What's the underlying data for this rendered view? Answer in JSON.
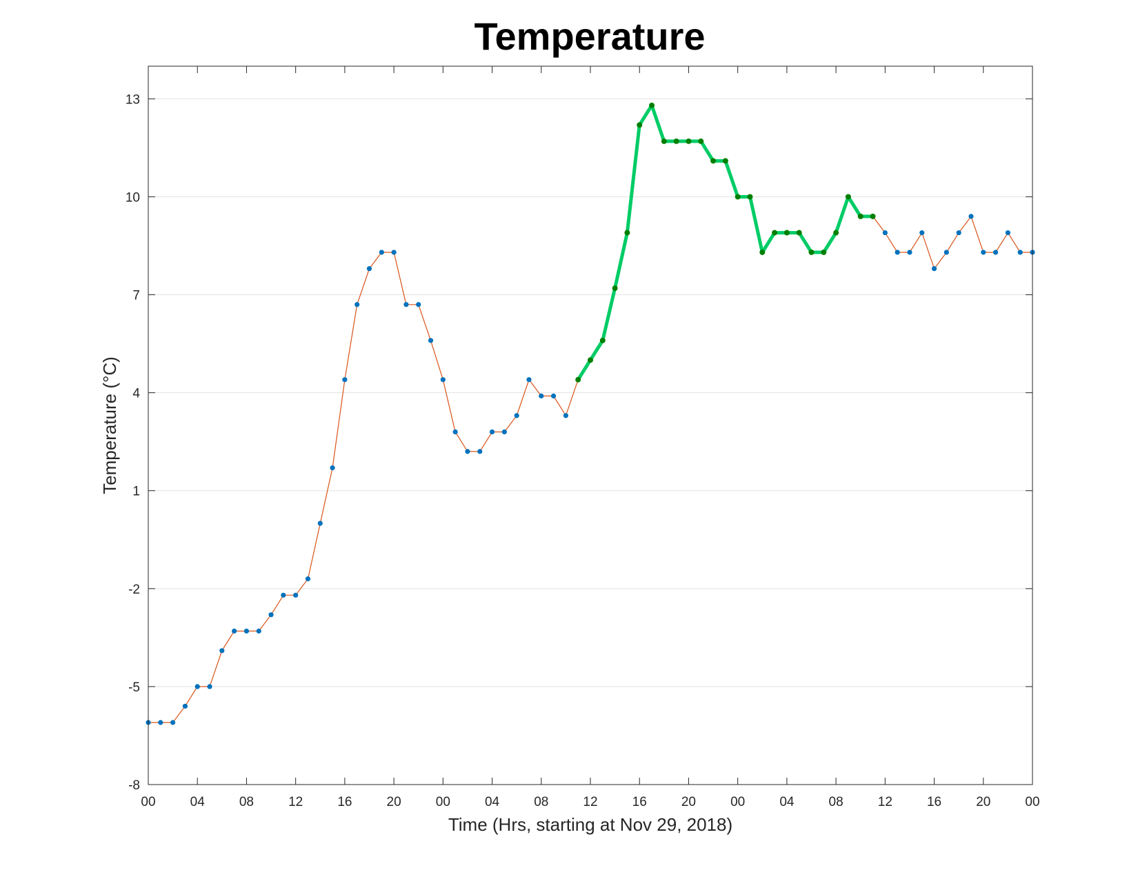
{
  "chart_data": {
    "type": "line",
    "title": "Temperature",
    "xlabel": "Time (Hrs, starting at Nov 29, 2018)",
    "ylabel": "Temperature (°C)",
    "xlim": [
      0,
      72
    ],
    "ylim": [
      -8,
      14
    ],
    "yticks": [
      -8,
      -5,
      -2,
      1,
      4,
      7,
      10,
      13
    ],
    "xticks": [
      0,
      4,
      8,
      12,
      16,
      20,
      24,
      28,
      32,
      36,
      40,
      44,
      48,
      52,
      56,
      60,
      64,
      68,
      72
    ],
    "xtick_labels": [
      "00",
      "04",
      "08",
      "12",
      "16",
      "20",
      "00",
      "04",
      "08",
      "12",
      "16",
      "20",
      "00",
      "04",
      "08",
      "12",
      "16",
      "20",
      "00"
    ],
    "grid": true,
    "series": [
      {
        "kind": "line-with-markers",
        "color": "#D95319",
        "marker_color": "#0072BD",
        "x": [
          0,
          1,
          2,
          3,
          4,
          5,
          6,
          7,
          8,
          9,
          10,
          11,
          12,
          13,
          14,
          15,
          16,
          17,
          18,
          19,
          20,
          21,
          22,
          23,
          24,
          25,
          26,
          27,
          28,
          29,
          30,
          31,
          32,
          33,
          34,
          35,
          36,
          37,
          38,
          39,
          40,
          41,
          42,
          43,
          44,
          45,
          46,
          47,
          48,
          49,
          50,
          51,
          52,
          53,
          54,
          55,
          56,
          57,
          58,
          59,
          60,
          61,
          62,
          63,
          64,
          65,
          66,
          67,
          68,
          69,
          70,
          71,
          72
        ],
        "values": [
          -6.1,
          -6.1,
          -6.1,
          -5.6,
          -5,
          -5,
          -3.9,
          -3.3,
          -3.3,
          -3.3,
          -2.8,
          -2.2,
          -2.2,
          -1.7,
          0,
          1.7,
          4.4,
          6.7,
          7.8,
          8.3,
          8.3,
          6.7,
          6.7,
          5.6,
          4.4,
          2.8,
          2.2,
          2.2,
          2.8,
          2.8,
          3.3,
          4.4,
          3.9,
          3.9,
          3.3,
          4.4,
          5,
          5.6,
          7.2,
          8.9,
          12.2,
          12.8,
          11.7,
          11.7,
          11.7,
          11.7,
          11.1,
          11.1,
          10,
          10,
          8.3,
          8.9,
          8.9,
          8.9,
          8.3,
          8.3,
          8.9,
          10,
          9.4,
          9.4,
          8.9,
          8.3,
          8.3,
          8.9,
          7.8,
          8.3,
          8.9,
          9.4,
          8.3,
          8.3,
          8.9,
          8.3,
          8.3
        ]
      },
      {
        "kind": "highlight-segment",
        "color": "#00CC66",
        "marker_color": "#007F00",
        "x": [
          35,
          36,
          37,
          38,
          39,
          40,
          41,
          42,
          43,
          44,
          45,
          46,
          47,
          48,
          49,
          50,
          51,
          52,
          53,
          54,
          55,
          56,
          57,
          58,
          59
        ],
        "values": [
          4.4,
          5,
          5.6,
          7.2,
          8.9,
          12.2,
          12.8,
          11.7,
          11.7,
          11.7,
          11.7,
          11.1,
          11.1,
          10,
          10,
          8.3,
          8.9,
          8.9,
          8.9,
          8.3,
          8.3,
          8.9,
          10,
          9.4,
          9.4
        ]
      }
    ]
  }
}
